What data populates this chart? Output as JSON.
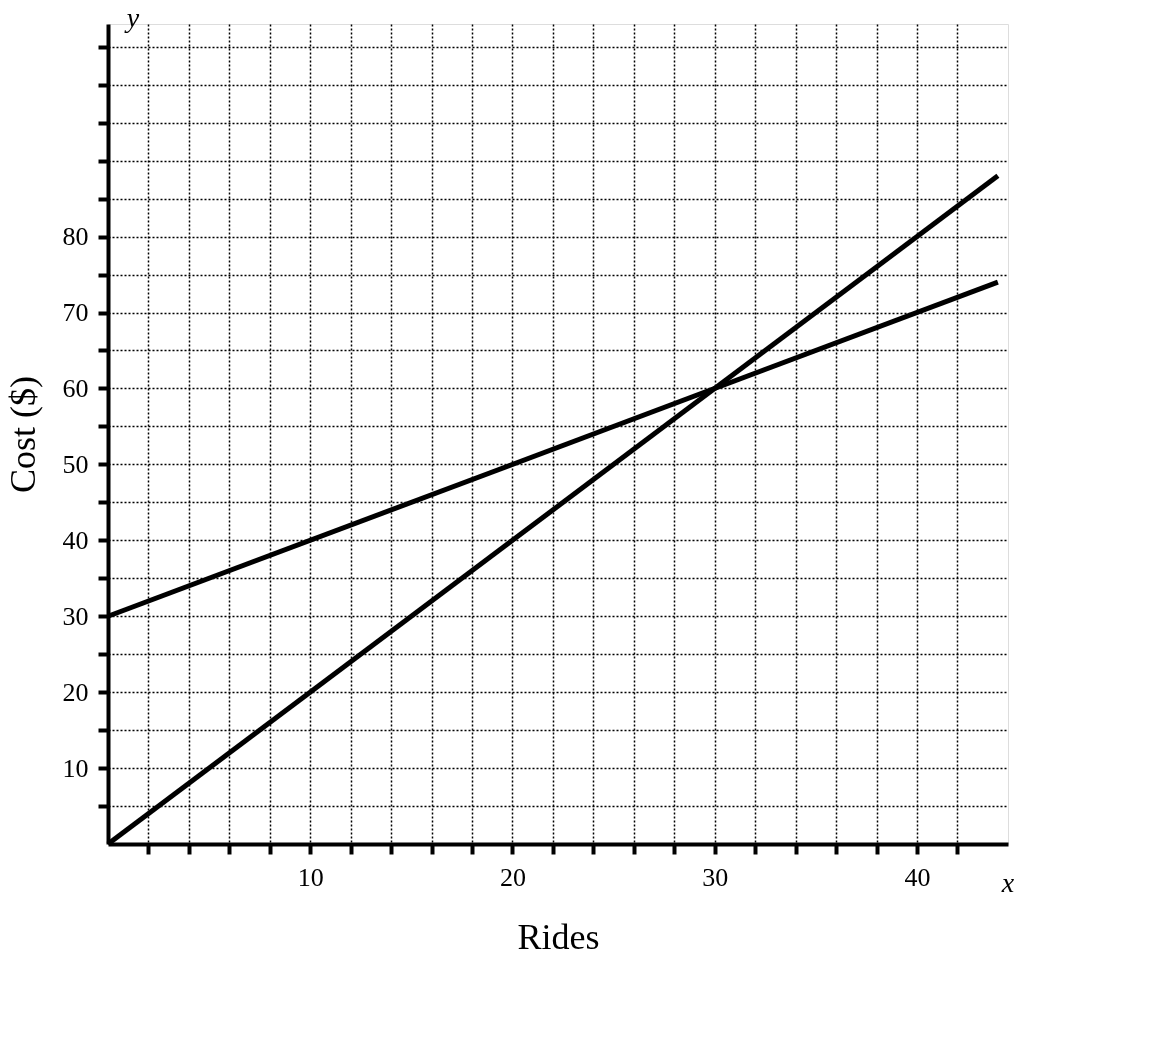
{
  "chart_data": {
    "type": "line",
    "xlabel": "Rides",
    "ylabel": "Cost ($)",
    "x": [
      0,
      44
    ],
    "series": [
      {
        "color": "#000000",
        "values": [
          0,
          88
        ]
      },
      {
        "color": "#000000",
        "values": [
          30,
          74
        ]
      }
    ],
    "xlim": [
      0,
      44.5
    ],
    "ylim": [
      0,
      108
    ],
    "xticks": [
      {
        "value": 2,
        "label": null
      },
      {
        "value": 4,
        "label": null
      },
      {
        "value": 6,
        "label": null
      },
      {
        "value": 8,
        "label": null
      },
      10,
      {
        "value": 12,
        "label": null
      },
      {
        "value": 14,
        "label": null
      },
      {
        "value": 16,
        "label": null
      },
      {
        "value": 18,
        "label": null
      },
      20,
      {
        "value": 22,
        "label": null
      },
      {
        "value": 24,
        "label": null
      },
      {
        "value": 26,
        "label": null
      },
      {
        "value": 28,
        "label": null
      },
      30,
      {
        "value": 32,
        "label": null
      },
      {
        "value": 34,
        "label": null
      },
      {
        "value": 36,
        "label": null
      },
      {
        "value": 38,
        "label": null
      },
      40,
      {
        "value": 42,
        "label": null
      }
    ],
    "yticks": [
      {
        "value": 5,
        "label": null
      },
      10,
      {
        "value": 15,
        "label": null
      },
      20,
      {
        "value": 25,
        "label": null
      },
      30,
      {
        "value": 35,
        "label": null
      },
      40,
      {
        "value": 45,
        "label": null
      },
      50,
      {
        "value": 55,
        "label": null
      },
      60,
      {
        "value": 65,
        "label": null
      },
      70,
      {
        "value": 75,
        "label": null
      },
      80,
      {
        "value": 85,
        "label": null
      },
      {
        "value": 90,
        "label": null
      },
      {
        "value": 95,
        "label": null
      },
      {
        "value": 100,
        "label": null
      },
      {
        "value": 105,
        "label": null
      }
    ],
    "grid": true,
    "marker": "none",
    "line_style": "solid",
    "legend": false,
    "annotations": [
      "x",
      "y"
    ]
  }
}
